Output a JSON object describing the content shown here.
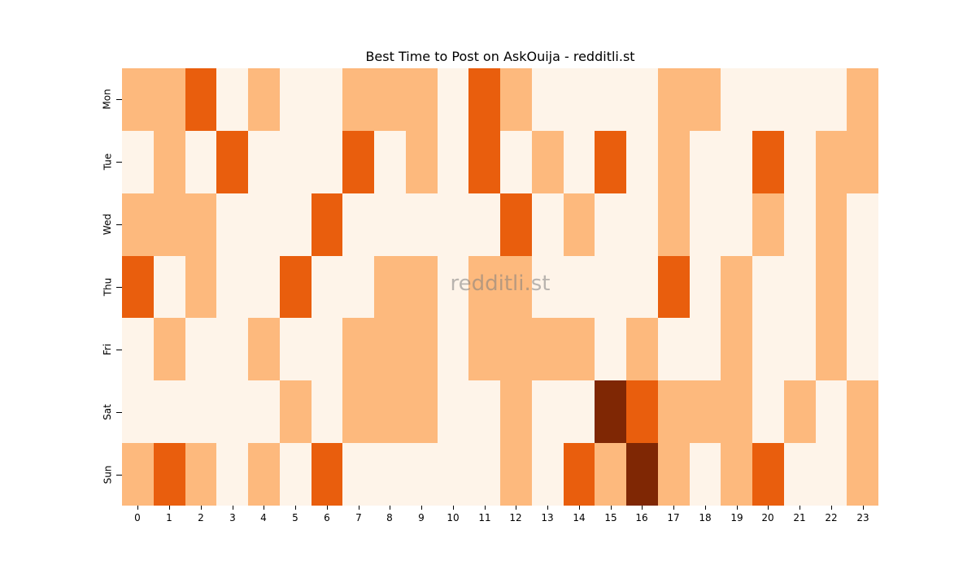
{
  "chart_data": {
    "type": "heatmap",
    "title": "Best Time to Post on AskOuija - redditli.st",
    "xlabel": "",
    "ylabel": "",
    "watermark": "redditli.st",
    "x": [
      "0",
      "1",
      "2",
      "3",
      "4",
      "5",
      "6",
      "7",
      "8",
      "9",
      "10",
      "11",
      "12",
      "13",
      "14",
      "15",
      "16",
      "17",
      "18",
      "19",
      "20",
      "21",
      "22",
      "23"
    ],
    "y": [
      "Mon",
      "Tue",
      "Wed",
      "Thu",
      "Fri",
      "Sat",
      "Sun"
    ],
    "colorscale": [
      "#fef4e9",
      "#fdb97d",
      "#e95e0d",
      "#7f2704"
    ],
    "colorbar": false,
    "values": [
      [
        1,
        1,
        2,
        0,
        1,
        0,
        0,
        1,
        1,
        1,
        0,
        2,
        1,
        0,
        0,
        0,
        0,
        1,
        1,
        0,
        0,
        0,
        0,
        1
      ],
      [
        0,
        1,
        0,
        2,
        0,
        0,
        0,
        2,
        0,
        1,
        0,
        2,
        0,
        1,
        0,
        2,
        0,
        1,
        0,
        0,
        2,
        0,
        1,
        1
      ],
      [
        1,
        1,
        1,
        0,
        0,
        0,
        2,
        0,
        0,
        0,
        0,
        0,
        2,
        0,
        1,
        0,
        0,
        1,
        0,
        0,
        1,
        0,
        1,
        0
      ],
      [
        2,
        0,
        1,
        0,
        0,
        2,
        0,
        0,
        1,
        1,
        0,
        1,
        1,
        0,
        0,
        0,
        0,
        2,
        0,
        1,
        0,
        0,
        1,
        0
      ],
      [
        0,
        1,
        0,
        0,
        1,
        0,
        0,
        1,
        1,
        1,
        0,
        1,
        1,
        1,
        1,
        0,
        1,
        0,
        0,
        1,
        0,
        0,
        1,
        0
      ],
      [
        0,
        0,
        0,
        0,
        0,
        1,
        0,
        1,
        1,
        1,
        0,
        0,
        1,
        0,
        0,
        3,
        2,
        1,
        1,
        1,
        0,
        1,
        0,
        1
      ],
      [
        1,
        2,
        1,
        0,
        1,
        0,
        2,
        0,
        0,
        0,
        0,
        0,
        1,
        0,
        2,
        1,
        3,
        1,
        0,
        1,
        2,
        0,
        0,
        1
      ]
    ]
  }
}
